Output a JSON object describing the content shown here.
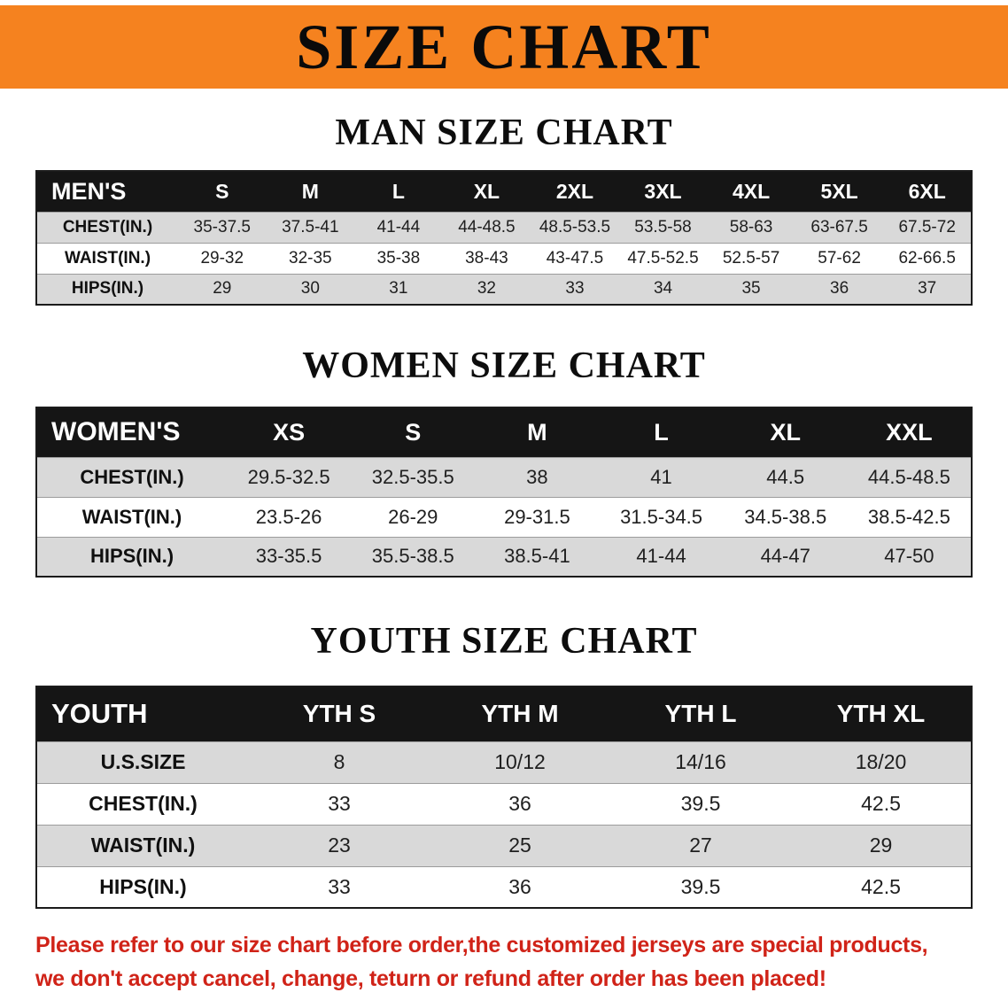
{
  "banner": {
    "title": "SIZE CHART"
  },
  "colors": {
    "banner_bg": "#f5821f",
    "header_row_bg": "#151515",
    "stripe_row_bg": "#d9d9d9",
    "notice_text": "#d02318"
  },
  "sections": {
    "men": {
      "heading": "MAN SIZE CHART",
      "table": {
        "header": [
          "MEN'S",
          "S",
          "M",
          "L",
          "XL",
          "2XL",
          "3XL",
          "4XL",
          "5XL",
          "6XL"
        ],
        "rows": [
          [
            "CHEST(IN.)",
            "35-37.5",
            "37.5-41",
            "41-44",
            "44-48.5",
            "48.5-53.5",
            "53.5-58",
            "58-63",
            "63-67.5",
            "67.5-72"
          ],
          [
            "WAIST(IN.)",
            "29-32",
            "32-35",
            "35-38",
            "38-43",
            "43-47.5",
            "47.5-52.5",
            "52.5-57",
            "57-62",
            "62-66.5"
          ],
          [
            "HIPS(IN.)",
            "29",
            "30",
            "31",
            "32",
            "33",
            "34",
            "35",
            "36",
            "37"
          ]
        ]
      }
    },
    "women": {
      "heading": "WOMEN SIZE CHART",
      "table": {
        "header": [
          "WOMEN'S",
          "XS",
          "S",
          "M",
          "L",
          "XL",
          "XXL"
        ],
        "rows": [
          [
            "CHEST(IN.)",
            "29.5-32.5",
            "32.5-35.5",
            "38",
            "41",
            "44.5",
            "44.5-48.5"
          ],
          [
            "WAIST(IN.)",
            "23.5-26",
            "26-29",
            "29-31.5",
            "31.5-34.5",
            "34.5-38.5",
            "38.5-42.5"
          ],
          [
            "HIPS(IN.)",
            "33-35.5",
            "35.5-38.5",
            "38.5-41",
            "41-44",
            "44-47",
            "47-50"
          ]
        ]
      }
    },
    "youth": {
      "heading": "YOUTH SIZE CHART",
      "table": {
        "header": [
          "YOUTH",
          "YTH S",
          "YTH M",
          "YTH L",
          "YTH XL"
        ],
        "rows": [
          [
            "U.S.SIZE",
            "8",
            "10/12",
            "14/16",
            "18/20"
          ],
          [
            "CHEST(IN.)",
            "33",
            "36",
            "39.5",
            "42.5"
          ],
          [
            "WAIST(IN.)",
            "23",
            "25",
            "27",
            "29"
          ],
          [
            "HIPS(IN.)",
            "33",
            "36",
            "39.5",
            "42.5"
          ]
        ]
      }
    }
  },
  "notice": {
    "line1": "Please refer to our size chart before order,the customized jerseys are special products,",
    "line2": "we don't accept cancel, change, teturn or refund after order has been placed!"
  }
}
